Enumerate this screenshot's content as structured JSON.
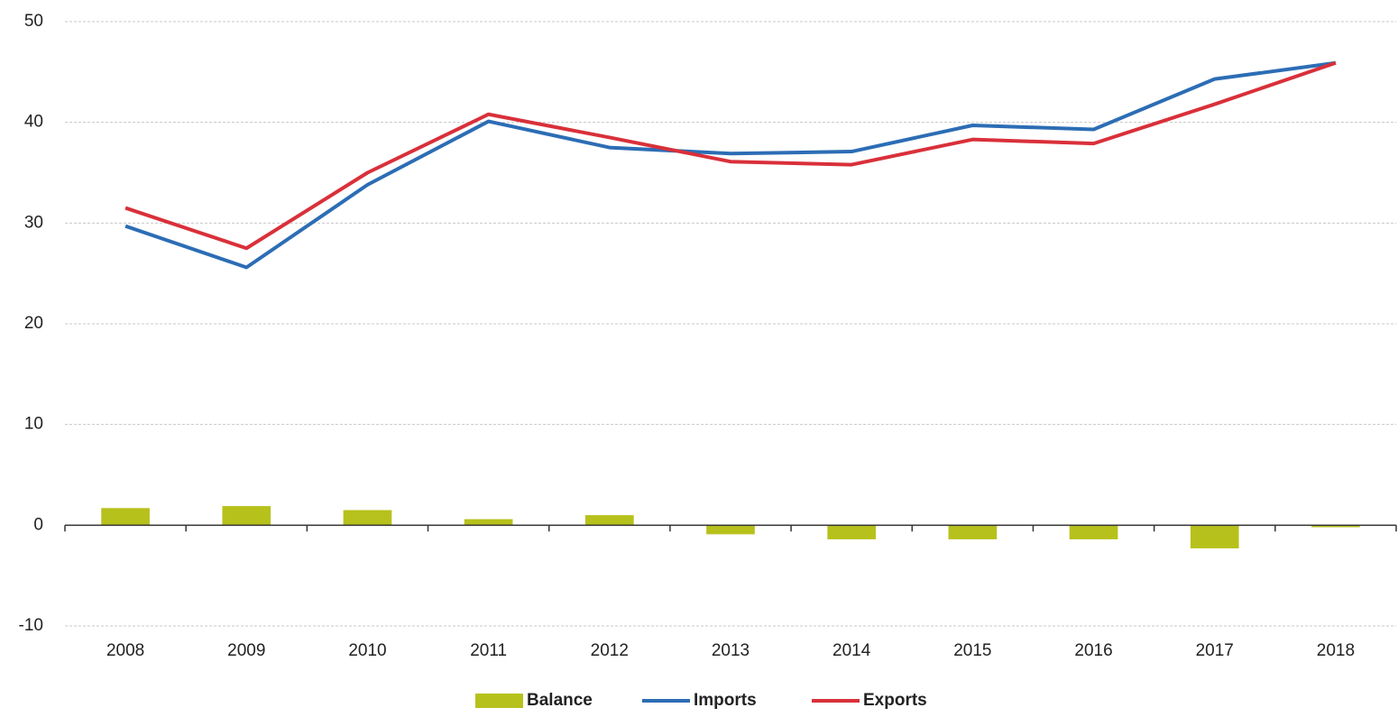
{
  "chart_data": {
    "type": "combo",
    "categories": [
      "2008",
      "2009",
      "2010",
      "2011",
      "2012",
      "2013",
      "2014",
      "2015",
      "2016",
      "2017",
      "2018"
    ],
    "series": [
      {
        "name": "Balance",
        "type": "bar",
        "color": "#b7c11c",
        "values": [
          1.7,
          1.9,
          1.5,
          0.6,
          1.0,
          -0.9,
          -1.4,
          -1.4,
          -1.4,
          -2.3,
          -0.2
        ]
      },
      {
        "name": "Imports",
        "type": "line",
        "color": "#2c6db5",
        "values": [
          29.7,
          25.6,
          33.8,
          40.1,
          37.5,
          36.9,
          37.1,
          39.7,
          39.3,
          44.3,
          45.9
        ]
      },
      {
        "name": "Exports",
        "type": "line",
        "color": "#d9303a",
        "values": [
          31.5,
          27.5,
          35.0,
          40.8,
          38.5,
          36.1,
          35.8,
          38.3,
          37.9,
          41.8,
          45.9
        ]
      }
    ],
    "ylim": [
      -10,
      50
    ],
    "yticks": [
      -10,
      0,
      10,
      20,
      30,
      40,
      50
    ],
    "grid": true,
    "legend": "bottom"
  }
}
